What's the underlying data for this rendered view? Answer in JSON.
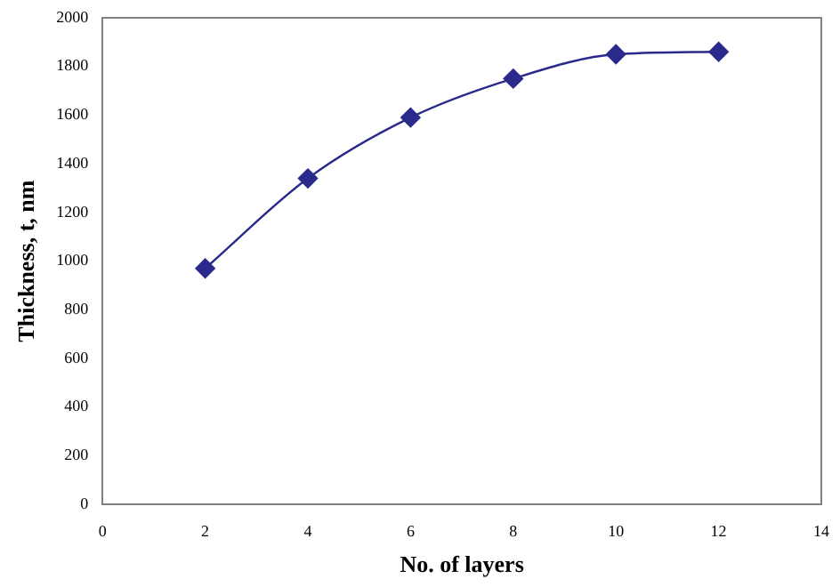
{
  "chart_data": {
    "type": "line",
    "xlabel": "No. of layers",
    "ylabel": "Thickness, t, nm",
    "x": [
      2,
      4,
      6,
      8,
      10,
      12
    ],
    "series": [
      {
        "color": "#2a2a8c",
        "values": [
          970,
          1340,
          1590,
          1750,
          1850,
          1860
        ]
      }
    ],
    "xlim": [
      0,
      14
    ],
    "xticks": [
      0,
      2,
      4,
      6,
      8,
      10,
      12,
      14
    ],
    "ylim": [
      0,
      2000
    ],
    "yticks": [
      0,
      200,
      400,
      600,
      800,
      1000,
      1200,
      1400,
      1600,
      1800,
      2000
    ],
    "grid": false,
    "legend": false,
    "marker": "diamond",
    "line_style": "solid"
  }
}
